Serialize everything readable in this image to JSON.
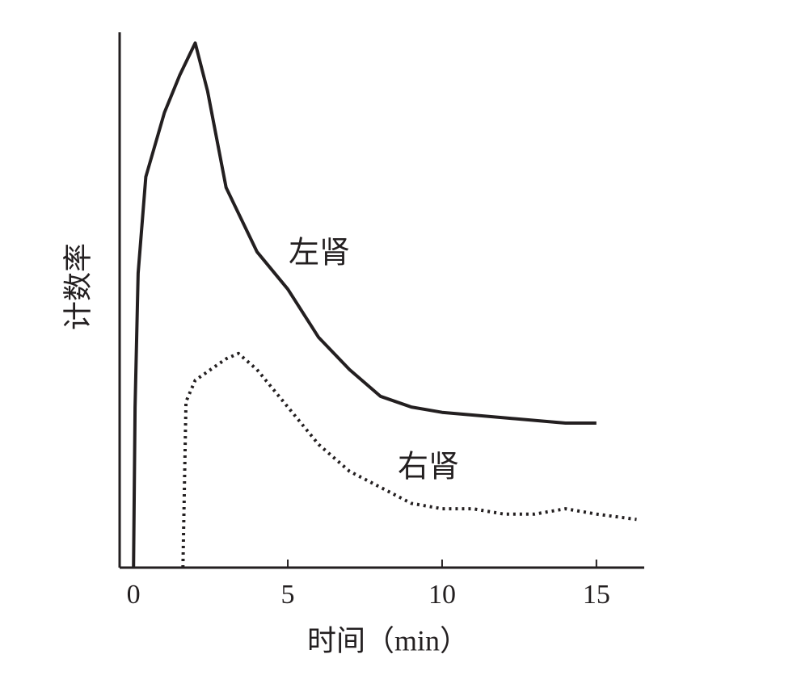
{
  "chart_data": {
    "type": "line",
    "x_label": "时间（min）",
    "y_label": "计数率",
    "xlim": [
      -0.45,
      16.55
    ],
    "xticks": [
      0,
      5,
      10,
      15
    ],
    "ylim": [
      0,
      100
    ],
    "series": [
      {
        "name": "左肾",
        "color": "#231f20",
        "dash": "solid",
        "x": [
          0,
          0.05,
          0.15,
          0.4,
          1,
          1.5,
          2,
          2.4,
          3,
          4,
          5,
          6,
          7,
          8,
          9,
          10,
          12,
          14,
          15
        ],
        "values": [
          0,
          30,
          55,
          73,
          85,
          92,
          98,
          89,
          71,
          59,
          52,
          43,
          37,
          32,
          30,
          29,
          28,
          27,
          27
        ]
      },
      {
        "name": "右肾",
        "color": "#231f20",
        "dash": "dotted",
        "x": [
          1.6,
          1.7,
          2,
          2.5,
          3,
          3.4,
          4,
          5,
          6,
          7,
          8,
          9,
          10,
          11,
          12,
          13,
          14,
          15,
          16.3
        ],
        "values": [
          0,
          31,
          35,
          37,
          39,
          40,
          37,
          30,
          23,
          18,
          15,
          12,
          11,
          11,
          10,
          10,
          11,
          10,
          9
        ]
      }
    ]
  }
}
